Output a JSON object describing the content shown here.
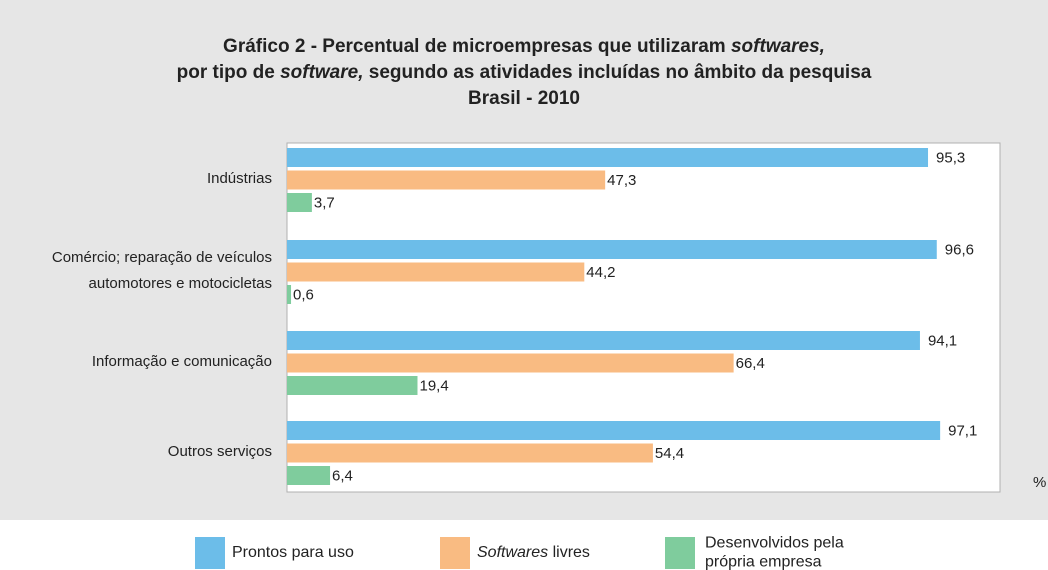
{
  "chart_data": {
    "type": "bar",
    "orientation": "horizontal",
    "title": [
      [
        {
          "text": "Gráfico 2 - Percentual de microempresas que utilizaram "
        },
        {
          "text": "softwares,",
          "italic": true
        }
      ],
      [
        {
          "text": "por tipo de "
        },
        {
          "text": "software,",
          "italic": true
        },
        {
          "text": " segundo as atividades incluídas no âmbito da pesquisa"
        }
      ],
      [
        {
          "text": "Brasil - 2010"
        }
      ]
    ],
    "categories": [
      "Indústrias",
      "Comércio; reparação de veículos automotores e motocicletas",
      "Informação e comunicação",
      "Outros serviços"
    ],
    "series": [
      {
        "name": "Prontos para uso",
        "color": "#6cbde9",
        "values": [
          95.3,
          96.6,
          94.1,
          97.1
        ],
        "value_labels": [
          "95,3",
          "96,6",
          "94,1",
          "97,1"
        ]
      },
      {
        "name": "Softwares livres",
        "italic_first_word": true,
        "color": "#f9bb82",
        "values": [
          47.3,
          44.2,
          66.4,
          54.4
        ],
        "value_labels": [
          "47,3",
          "44,2",
          "66,4",
          "54,4"
        ]
      },
      {
        "name": "Desenvolvidos pela própria empresa",
        "color": "#7fcc9d",
        "values": [
          3.7,
          0.6,
          19.4,
          6.4
        ],
        "value_labels": [
          "3,7",
          "0,6",
          "19,4",
          "6,4"
        ]
      }
    ],
    "xlabel": "%",
    "xlim": [
      0,
      106
    ],
    "legend": "bottom"
  }
}
